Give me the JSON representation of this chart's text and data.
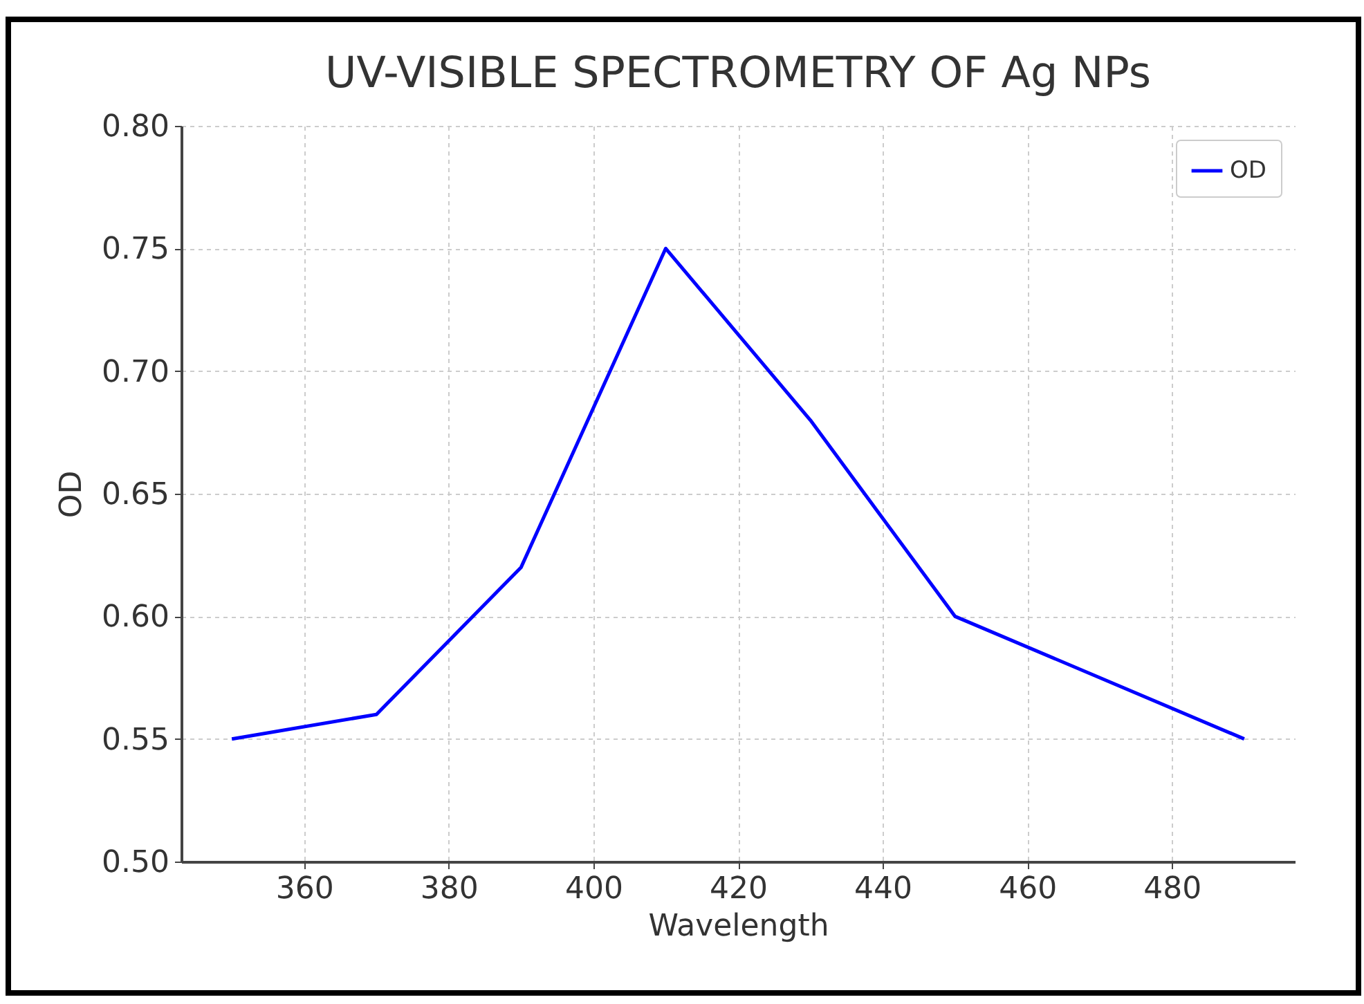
{
  "chart_data": {
    "type": "line",
    "title": "UV-VISIBLE SPECTROMETRY OF Ag NPs",
    "xlabel": "Wavelength",
    "ylabel": "OD",
    "x": [
      350,
      370,
      390,
      410,
      430,
      450,
      490
    ],
    "series": [
      {
        "name": "OD",
        "color": "#0000ff",
        "values": [
          0.55,
          0.56,
          0.62,
          0.75,
          0.68,
          0.6,
          0.55
        ]
      }
    ],
    "xlim": [
      343,
      497
    ],
    "xticks": [
      360,
      380,
      400,
      420,
      440,
      460,
      480
    ],
    "ylim": [
      0.5,
      0.8
    ],
    "yticks": [
      {
        "value": 0.5,
        "label": "0.50"
      },
      0.55,
      {
        "value": 0.6,
        "label": "0.60"
      },
      0.65,
      {
        "value": 0.7,
        "label": "0.70"
      },
      0.75,
      {
        "value": 0.8,
        "label": "0.80"
      }
    ],
    "grid": true,
    "legend": "top right",
    "marker": "none",
    "line_style": "solid"
  }
}
